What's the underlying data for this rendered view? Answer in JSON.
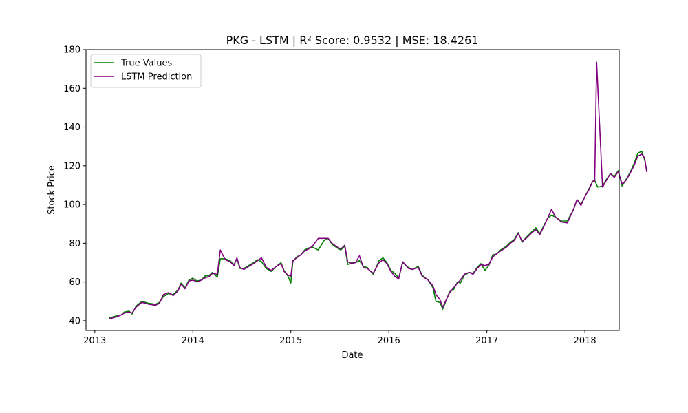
{
  "chart_data": {
    "type": "line",
    "title": "PKG - LSTM | R² Score: 0.9532 | MSE: 18.4261",
    "xlabel": "Date",
    "ylabel": "Stock Price",
    "xlim": [
      2012.91,
      2018.35
    ],
    "ylim": [
      35,
      180
    ],
    "x_ticks": [
      2013,
      2014,
      2015,
      2016,
      2017,
      2018
    ],
    "x_tick_labels": [
      "2013",
      "2014",
      "2015",
      "2016",
      "2017",
      "2018"
    ],
    "y_ticks": [
      40,
      60,
      80,
      100,
      120,
      140,
      160,
      180
    ],
    "y_tick_labels": [
      "40",
      "60",
      "80",
      "100",
      "120",
      "140",
      "160",
      "180"
    ],
    "grid": false,
    "legend_position": "top-left",
    "series": [
      {
        "name": "True Values",
        "color": "#008000",
        "points": [
          [
            2013.15,
            41.5
          ],
          [
            2013.22,
            42.5
          ],
          [
            2013.27,
            43.0
          ],
          [
            2013.3,
            44.5
          ],
          [
            2013.35,
            45.0
          ],
          [
            2013.38,
            43.5
          ],
          [
            2013.42,
            47.5
          ],
          [
            2013.48,
            50.0
          ],
          [
            2013.55,
            49.0
          ],
          [
            2013.62,
            48.5
          ],
          [
            2013.66,
            49.5
          ],
          [
            2013.7,
            52.5
          ],
          [
            2013.75,
            54.0
          ],
          [
            2013.8,
            53.5
          ],
          [
            2013.85,
            56.0
          ],
          [
            2013.88,
            59.5
          ],
          [
            2013.92,
            57.0
          ],
          [
            2013.96,
            61.0
          ],
          [
            2014.0,
            62.0
          ],
          [
            2014.04,
            60.5
          ],
          [
            2014.09,
            61.0
          ],
          [
            2014.12,
            63.0
          ],
          [
            2014.17,
            63.5
          ],
          [
            2014.2,
            65.0
          ],
          [
            2014.25,
            62.5
          ],
          [
            2014.28,
            72.0
          ],
          [
            2014.33,
            72.0
          ],
          [
            2014.38,
            71.0
          ],
          [
            2014.42,
            69.0
          ],
          [
            2014.45,
            72.0
          ],
          [
            2014.48,
            67.0
          ],
          [
            2014.52,
            67.0
          ],
          [
            2014.57,
            68.5
          ],
          [
            2014.62,
            70.0
          ],
          [
            2014.66,
            71.5
          ],
          [
            2014.7,
            70.5
          ],
          [
            2014.75,
            67.0
          ],
          [
            2014.8,
            65.5
          ],
          [
            2014.85,
            68.0
          ],
          [
            2014.9,
            70.0
          ],
          [
            2014.93,
            66.0
          ],
          [
            2014.97,
            63.0
          ],
          [
            2015.0,
            59.5
          ],
          [
            2015.02,
            70.5
          ],
          [
            2015.06,
            73.0
          ],
          [
            2015.1,
            74.0
          ],
          [
            2015.14,
            76.5
          ],
          [
            2015.18,
            77.5
          ],
          [
            2015.22,
            78.0
          ],
          [
            2015.28,
            76.5
          ],
          [
            2015.34,
            81.5
          ],
          [
            2015.38,
            82.5
          ],
          [
            2015.42,
            79.5
          ],
          [
            2015.46,
            78.0
          ],
          [
            2015.51,
            76.5
          ],
          [
            2015.55,
            78.5
          ],
          [
            2015.58,
            69.0
          ],
          [
            2015.62,
            70.0
          ],
          [
            2015.66,
            70.0
          ],
          [
            2015.7,
            71.0
          ],
          [
            2015.74,
            68.0
          ],
          [
            2015.78,
            67.5
          ],
          [
            2015.84,
            64.0
          ],
          [
            2015.9,
            71.0
          ],
          [
            2015.94,
            72.5
          ],
          [
            2015.98,
            70.0
          ],
          [
            2016.02,
            66.0
          ],
          [
            2016.06,
            64.5
          ],
          [
            2016.1,
            62.0
          ],
          [
            2016.14,
            70.0
          ],
          [
            2016.2,
            67.5
          ],
          [
            2016.24,
            66.5
          ],
          [
            2016.3,
            68.0
          ],
          [
            2016.34,
            63.5
          ],
          [
            2016.4,
            61.0
          ],
          [
            2016.45,
            57.0
          ],
          [
            2016.48,
            50.0
          ],
          [
            2016.52,
            49.5
          ],
          [
            2016.55,
            46.0
          ],
          [
            2016.62,
            55.0
          ],
          [
            2016.66,
            56.0
          ],
          [
            2016.7,
            60.0
          ],
          [
            2016.73,
            59.5
          ],
          [
            2016.77,
            63.5
          ],
          [
            2016.82,
            65.0
          ],
          [
            2016.86,
            64.5
          ],
          [
            2016.9,
            67.5
          ],
          [
            2016.94,
            69.5
          ],
          [
            2016.98,
            66.0
          ],
          [
            2017.02,
            68.5
          ],
          [
            2017.06,
            74.0
          ],
          [
            2017.1,
            74.5
          ],
          [
            2017.14,
            76.5
          ],
          [
            2017.2,
            78.5
          ],
          [
            2017.24,
            80.5
          ],
          [
            2017.28,
            82.0
          ],
          [
            2017.32,
            85.5
          ],
          [
            2017.36,
            80.5
          ],
          [
            2017.4,
            83.0
          ],
          [
            2017.46,
            86.0
          ],
          [
            2017.5,
            88.0
          ],
          [
            2017.54,
            85.0
          ],
          [
            2017.58,
            89.0
          ],
          [
            2017.62,
            93.0
          ],
          [
            2017.66,
            94.5
          ],
          [
            2017.7,
            93.5
          ],
          [
            2017.76,
            91.5
          ],
          [
            2017.82,
            91.5
          ],
          [
            2017.88,
            97.0
          ],
          [
            2017.92,
            102.5
          ],
          [
            2017.96,
            100.0
          ],
          [
            2018.0,
            104.0
          ],
          [
            2018.04,
            108.0
          ],
          [
            2018.08,
            112.0
          ],
          [
            2018.1,
            112.5
          ],
          [
            2018.13,
            109.0
          ],
          [
            2018.18,
            109.5
          ],
          [
            2018.22,
            113.0
          ],
          [
            2018.26,
            116.0
          ],
          [
            2018.3,
            114.5
          ],
          [
            2018.34,
            117.5
          ],
          [
            2018.38,
            109.5
          ],
          [
            2018.42,
            113.0
          ],
          [
            2018.46,
            116.5
          ],
          [
            2018.5,
            121.0
          ],
          [
            2018.54,
            126.5
          ],
          [
            2018.58,
            127.5
          ],
          [
            2018.61,
            123.0
          ],
          [
            2018.63,
            118.0
          ]
        ]
      },
      {
        "name": "LSTM Prediction",
        "color": "#800080",
        "points": [
          [
            2013.15,
            41.0
          ],
          [
            2013.22,
            42.0
          ],
          [
            2013.27,
            43.0
          ],
          [
            2013.3,
            44.0
          ],
          [
            2013.35,
            44.5
          ],
          [
            2013.38,
            44.0
          ],
          [
            2013.42,
            47.0
          ],
          [
            2013.48,
            49.5
          ],
          [
            2013.55,
            48.5
          ],
          [
            2013.62,
            48.0
          ],
          [
            2013.66,
            49.0
          ],
          [
            2013.7,
            53.5
          ],
          [
            2013.75,
            54.5
          ],
          [
            2013.8,
            53.0
          ],
          [
            2013.85,
            55.5
          ],
          [
            2013.88,
            59.0
          ],
          [
            2013.92,
            56.5
          ],
          [
            2013.96,
            60.5
          ],
          [
            2014.0,
            61.0
          ],
          [
            2014.04,
            60.0
          ],
          [
            2014.09,
            61.0
          ],
          [
            2014.12,
            62.0
          ],
          [
            2014.17,
            63.0
          ],
          [
            2014.2,
            64.5
          ],
          [
            2014.25,
            64.0
          ],
          [
            2014.28,
            76.5
          ],
          [
            2014.33,
            71.5
          ],
          [
            2014.38,
            70.5
          ],
          [
            2014.42,
            68.5
          ],
          [
            2014.45,
            72.5
          ],
          [
            2014.48,
            67.5
          ],
          [
            2014.52,
            66.5
          ],
          [
            2014.57,
            68.0
          ],
          [
            2014.62,
            69.5
          ],
          [
            2014.66,
            71.0
          ],
          [
            2014.7,
            72.5
          ],
          [
            2014.75,
            67.5
          ],
          [
            2014.8,
            66.0
          ],
          [
            2014.85,
            68.0
          ],
          [
            2014.9,
            69.5
          ],
          [
            2014.93,
            65.5
          ],
          [
            2014.97,
            63.5
          ],
          [
            2015.0,
            63.0
          ],
          [
            2015.02,
            71.0
          ],
          [
            2015.06,
            72.5
          ],
          [
            2015.1,
            74.0
          ],
          [
            2015.14,
            76.0
          ],
          [
            2015.18,
            77.0
          ],
          [
            2015.22,
            78.5
          ],
          [
            2015.28,
            82.5
          ],
          [
            2015.34,
            82.5
          ],
          [
            2015.38,
            82.5
          ],
          [
            2015.42,
            80.0
          ],
          [
            2015.46,
            78.5
          ],
          [
            2015.51,
            77.0
          ],
          [
            2015.55,
            79.0
          ],
          [
            2015.58,
            70.5
          ],
          [
            2015.62,
            69.5
          ],
          [
            2015.66,
            70.0
          ],
          [
            2015.7,
            73.5
          ],
          [
            2015.74,
            67.5
          ],
          [
            2015.78,
            67.0
          ],
          [
            2015.84,
            64.5
          ],
          [
            2015.9,
            70.0
          ],
          [
            2015.94,
            71.5
          ],
          [
            2015.98,
            69.5
          ],
          [
            2016.02,
            65.5
          ],
          [
            2016.06,
            63.0
          ],
          [
            2016.1,
            61.5
          ],
          [
            2016.14,
            70.5
          ],
          [
            2016.2,
            67.0
          ],
          [
            2016.24,
            66.5
          ],
          [
            2016.3,
            67.5
          ],
          [
            2016.34,
            63.0
          ],
          [
            2016.4,
            61.0
          ],
          [
            2016.45,
            58.0
          ],
          [
            2016.48,
            53.5
          ],
          [
            2016.52,
            51.0
          ],
          [
            2016.55,
            47.0
          ],
          [
            2016.62,
            54.5
          ],
          [
            2016.66,
            57.0
          ],
          [
            2016.7,
            59.5
          ],
          [
            2016.73,
            61.0
          ],
          [
            2016.77,
            64.0
          ],
          [
            2016.82,
            65.0
          ],
          [
            2016.86,
            64.0
          ],
          [
            2016.9,
            67.0
          ],
          [
            2016.94,
            69.0
          ],
          [
            2016.98,
            68.5
          ],
          [
            2017.02,
            69.0
          ],
          [
            2017.06,
            73.0
          ],
          [
            2017.1,
            74.5
          ],
          [
            2017.14,
            76.0
          ],
          [
            2017.2,
            78.0
          ],
          [
            2017.24,
            80.0
          ],
          [
            2017.28,
            81.5
          ],
          [
            2017.32,
            85.0
          ],
          [
            2017.36,
            81.0
          ],
          [
            2017.4,
            82.5
          ],
          [
            2017.46,
            85.5
          ],
          [
            2017.5,
            87.0
          ],
          [
            2017.54,
            84.5
          ],
          [
            2017.58,
            88.5
          ],
          [
            2017.62,
            93.0
          ],
          [
            2017.66,
            97.5
          ],
          [
            2017.7,
            93.5
          ],
          [
            2017.76,
            91.0
          ],
          [
            2017.82,
            90.5
          ],
          [
            2017.88,
            97.0
          ],
          [
            2017.92,
            102.5
          ],
          [
            2017.96,
            99.5
          ],
          [
            2018.0,
            104.0
          ],
          [
            2018.04,
            107.5
          ],
          [
            2018.08,
            112.0
          ],
          [
            2018.1,
            112.0
          ],
          [
            2018.12,
            173.5
          ],
          [
            2018.18,
            109.0
          ],
          [
            2018.22,
            112.5
          ],
          [
            2018.26,
            116.0
          ],
          [
            2018.3,
            114.0
          ],
          [
            2018.34,
            117.0
          ],
          [
            2018.38,
            110.5
          ],
          [
            2018.42,
            112.5
          ],
          [
            2018.46,
            116.0
          ],
          [
            2018.5,
            120.0
          ],
          [
            2018.54,
            125.0
          ],
          [
            2018.58,
            126.0
          ],
          [
            2018.61,
            124.0
          ],
          [
            2018.63,
            117.0
          ]
        ]
      }
    ]
  }
}
